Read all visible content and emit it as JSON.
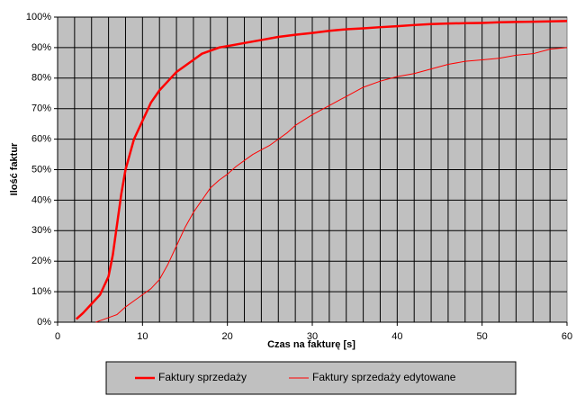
{
  "chart_data": {
    "type": "line",
    "xlabel": "Czas na fakturę [s]",
    "ylabel": "Ilość faktur",
    "xlim": [
      0,
      60
    ],
    "xticks": [
      0,
      10,
      20,
      30,
      40,
      50,
      60
    ],
    "xgrid": [
      2,
      4,
      6,
      8,
      10,
      12,
      14,
      16,
      18,
      20,
      22,
      24,
      26,
      28,
      30,
      32,
      34,
      36,
      38,
      40,
      42,
      44,
      46,
      48,
      50,
      52,
      54,
      56,
      58
    ],
    "ylim": [
      0,
      100
    ],
    "yticks": [
      {
        "value": 0,
        "label": "0%"
      },
      {
        "value": 10,
        "label": "10%"
      },
      {
        "value": 20,
        "label": "20%"
      },
      {
        "value": 30,
        "label": "30%"
      },
      {
        "value": 40,
        "label": "40%"
      },
      {
        "value": 50,
        "label": "50%"
      },
      {
        "value": 60,
        "label": "60%"
      },
      {
        "value": 70,
        "label": "70%"
      },
      {
        "value": 80,
        "label": "80%"
      },
      {
        "value": 90,
        "label": "90%"
      },
      {
        "value": 100,
        "label": "100%"
      }
    ],
    "grid": true,
    "background": "#c0c0c0",
    "legend": "bottom",
    "series": [
      {
        "name": "Faktury sprzedaży",
        "color": "#ff0000",
        "line_width": 2.5,
        "x": [
          2.2,
          3,
          4,
          5,
          6,
          6.5,
          7,
          7.5,
          8,
          8.5,
          9,
          10,
          11,
          12,
          13,
          14,
          15,
          16,
          17,
          18,
          19,
          20,
          22,
          24,
          26,
          28,
          30,
          32,
          34,
          36,
          38,
          40,
          42,
          44,
          46,
          48,
          50,
          52,
          54,
          56,
          58,
          60
        ],
        "values": [
          1,
          3,
          6,
          9,
          15,
          22,
          32,
          42,
          50,
          55,
          60,
          66,
          72,
          76,
          79,
          82,
          84,
          86,
          88,
          89,
          90,
          90.5,
          91.5,
          92.5,
          93.5,
          94.2,
          94.8,
          95.5,
          96,
          96.3,
          96.7,
          97,
          97.4,
          97.7,
          97.9,
          98,
          98.1,
          98.3,
          98.4,
          98.5,
          98.6,
          98.7
        ]
      },
      {
        "name": "Faktury sprzedaży edytowane",
        "color": "#ff0000",
        "line_width": 1,
        "x": [
          4.5,
          5,
          6,
          7,
          8,
          9,
          10,
          11,
          12,
          13,
          14,
          15,
          16,
          17,
          18,
          19,
          20,
          21,
          22,
          23,
          24,
          25,
          26,
          27,
          28,
          30,
          32,
          34,
          36,
          38,
          40,
          42,
          44,
          46,
          48,
          50,
          52,
          54,
          56,
          58,
          60
        ],
        "values": [
          0,
          0.5,
          1.5,
          2.5,
          5,
          7,
          9,
          11,
          14,
          19,
          25,
          31,
          36,
          40,
          44,
          46.5,
          48.5,
          51,
          53,
          55,
          56.5,
          58,
          60,
          62,
          64.5,
          68,
          71,
          74,
          77,
          79,
          80.5,
          81.5,
          83,
          84.5,
          85.5,
          86,
          86.5,
          87.5,
          88,
          89.5,
          90
        ]
      }
    ]
  }
}
